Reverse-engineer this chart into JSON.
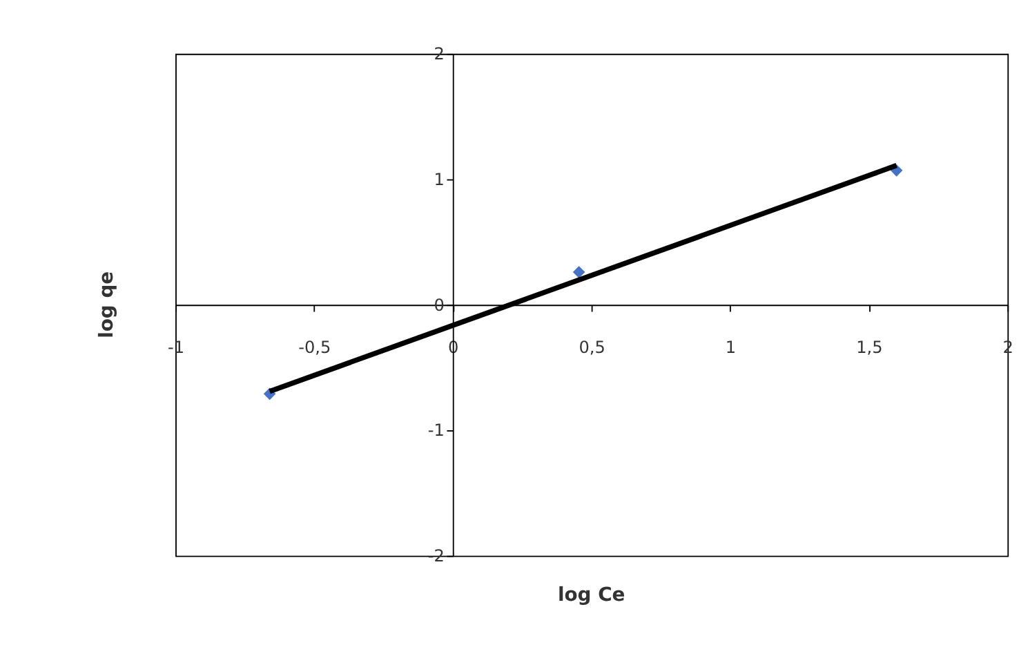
{
  "chart_data": {
    "type": "scatter",
    "xlabel": "log Ce",
    "ylabel": "log qe",
    "xlim": [
      -1,
      2
    ],
    "ylim": [
      -2,
      2
    ],
    "xticks": [
      -1,
      {
        "value": -0.5,
        "label": "-0,5"
      },
      0,
      {
        "value": 0.5,
        "label": "0,5"
      },
      1,
      {
        "value": 1.5,
        "label": "1,5"
      },
      2
    ],
    "yticks": [
      -2,
      -1,
      0,
      1,
      2
    ],
    "grid": false,
    "marker": "diamond",
    "series": [
      {
        "color": "#4472c4",
        "x": [
          -0.66,
          0.455,
          1.6
        ],
        "values": [
          -0.71,
          0.26,
          1.07
        ]
      },
      {
        "type": "line",
        "color": "#000000",
        "line_style": "solid",
        "marker": "none",
        "x": [
          -0.66,
          1.6
        ],
        "values": [
          -0.69,
          1.11
        ]
      }
    ]
  }
}
